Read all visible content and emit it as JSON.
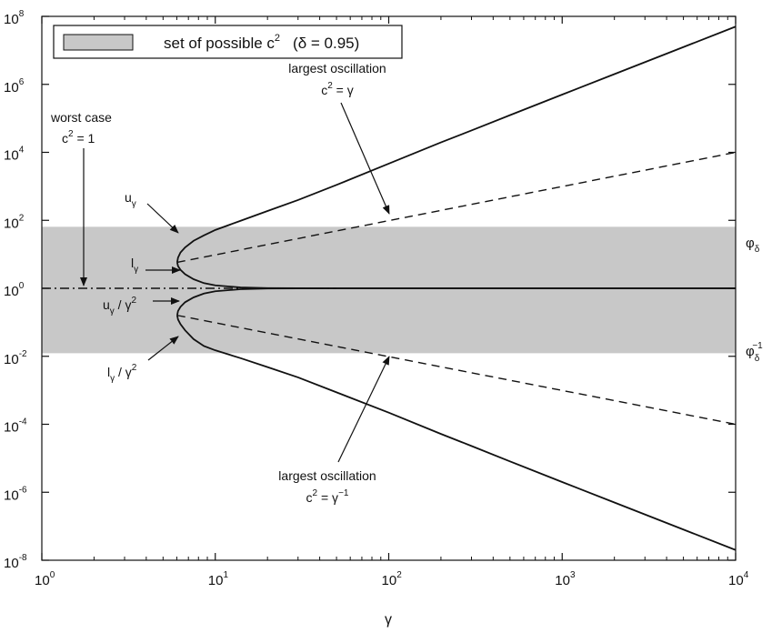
{
  "chart_data": {
    "type": "line",
    "xlabel": "γ",
    "ylabel": "",
    "x_scale": "log",
    "y_scale": "log",
    "xlim": [
      1,
      10000
    ],
    "ylim": [
      1e-08,
      100000000.0
    ],
    "x_ticks": [
      {
        "value": 1,
        "base": "10",
        "exp": "0"
      },
      {
        "value": 10,
        "base": "10",
        "exp": "1"
      },
      {
        "value": 100,
        "base": "10",
        "exp": "2"
      },
      {
        "value": 1000,
        "base": "10",
        "exp": "3"
      },
      {
        "value": 10000,
        "base": "10",
        "exp": "4"
      }
    ],
    "y_ticks": [
      {
        "value": 1e-08,
        "base": "10",
        "exp": "-8"
      },
      {
        "value": 1e-06,
        "base": "10",
        "exp": "-6"
      },
      {
        "value": 0.0001,
        "base": "10",
        "exp": "-4"
      },
      {
        "value": 0.01,
        "base": "10",
        "exp": "-2"
      },
      {
        "value": 1,
        "base": "10",
        "exp": "0"
      },
      {
        "value": 100,
        "base": "10",
        "exp": "2"
      },
      {
        "value": 10000,
        "base": "10",
        "exp": "4"
      },
      {
        "value": 1000000,
        "base": "10",
        "exp": "6"
      },
      {
        "value": 100000000,
        "base": "10",
        "exp": "8"
      }
    ],
    "legend": {
      "position": "top-left",
      "label": "set of possible c",
      "label_sup": "2",
      "label_suffix": "(δ = 0.95)"
    },
    "shaded_band": {
      "y_low": 0.0123,
      "y_high": 64.6,
      "color": "#c8c8c8"
    },
    "series": [
      {
        "key": "u_gamma",
        "style": "solid",
        "points": [
          [
            6.03,
            5.8
          ],
          [
            6.1,
            8.0
          ],
          [
            6.3,
            11.3
          ],
          [
            6.7,
            16.0
          ],
          [
            7.5,
            25
          ],
          [
            8.6,
            36
          ],
          [
            10,
            52
          ],
          [
            14,
            97
          ],
          [
            20,
            188
          ],
          [
            30,
            396
          ],
          [
            50,
            1100
          ],
          [
            100,
            4650
          ],
          [
            200,
            19600
          ],
          [
            300,
            44000
          ],
          [
            500,
            124000
          ],
          [
            1000,
            500000
          ],
          [
            2000,
            2000000
          ],
          [
            5000,
            12500000
          ],
          [
            10000,
            50000000
          ]
        ]
      },
      {
        "key": "l_gamma",
        "style": "solid",
        "points": [
          [
            6.03,
            5.8
          ],
          [
            6.1,
            4.5
          ],
          [
            6.3,
            3.5
          ],
          [
            6.7,
            2.6
          ],
          [
            7.5,
            1.85
          ],
          [
            8.6,
            1.42
          ],
          [
            10,
            1.22
          ],
          [
            14,
            1.06
          ],
          [
            20,
            1.015
          ],
          [
            30,
            1.003
          ],
          [
            50,
            1.0
          ],
          [
            100,
            1.0
          ],
          [
            10000,
            1.0
          ]
        ]
      },
      {
        "key": "u_gamma_over_gamma2",
        "style": "solid",
        "points": [
          [
            6.03,
            0.16
          ],
          [
            6.1,
            0.215
          ],
          [
            6.3,
            0.285
          ],
          [
            6.7,
            0.39
          ],
          [
            7.5,
            0.54
          ],
          [
            8.6,
            0.7
          ],
          [
            10,
            0.82
          ],
          [
            14,
            0.94
          ],
          [
            20,
            0.985
          ],
          [
            30,
            0.997
          ],
          [
            50,
            1.0
          ],
          [
            100,
            1.0
          ],
          [
            10000,
            1.0
          ]
        ]
      },
      {
        "key": "l_gamma_over_gamma2",
        "style": "solid",
        "points": [
          [
            6.03,
            0.16
          ],
          [
            6.1,
            0.121
          ],
          [
            6.3,
            0.088
          ],
          [
            6.7,
            0.058
          ],
          [
            7.5,
            0.032
          ],
          [
            8.6,
            0.02
          ],
          [
            10,
            0.015
          ],
          [
            14,
            0.0088
          ],
          [
            20,
            0.0048
          ],
          [
            30,
            0.0024
          ],
          [
            50,
            0.00087
          ],
          [
            100,
            0.00022
          ],
          [
            200,
            5.2e-05
          ],
          [
            300,
            2.3e-05
          ],
          [
            500,
            8.1e-06
          ],
          [
            1000,
            2e-06
          ],
          [
            2000,
            5e-07
          ],
          [
            5000,
            8e-08
          ],
          [
            10000,
            2e-08
          ]
        ]
      },
      {
        "key": "c2_equals_gamma",
        "style": "dashed",
        "points": [
          [
            6.03,
            5.8
          ],
          [
            10000,
            10000
          ]
        ]
      },
      {
        "key": "c2_equals_inv_gamma",
        "style": "dashed",
        "points": [
          [
            6.03,
            0.16
          ],
          [
            10000,
            0.0001
          ]
        ]
      },
      {
        "key": "c2_equals_1",
        "style": "dashdot",
        "points": [
          [
            1,
            1
          ],
          [
            50,
            1
          ]
        ]
      }
    ],
    "annotations": {
      "worst_case": {
        "line1": "worst case",
        "line2_base": "c",
        "line2_sup": "2",
        "line2_rest": " = 1"
      },
      "largest_osc_top": {
        "line1": "largest oscillation",
        "line2_base": "c",
        "line2_sup": "2",
        "line2_rest": " = γ"
      },
      "largest_osc_bottom": {
        "line1": "largest oscillation",
        "line2_base": "c",
        "line2_sup": "2",
        "line2_rest": " = γ",
        "line2_sup2": "−1"
      },
      "u_gamma": {
        "base": "u",
        "sub": "γ"
      },
      "l_gamma": {
        "base": "l",
        "sub": "γ"
      },
      "u_gamma_over_gamma2": {
        "base": "u",
        "sub": "γ",
        "rest": " / γ",
        "sup": "2"
      },
      "l_gamma_over_gamma2": {
        "base": "l",
        "sub": "γ",
        "rest": " / γ",
        "sup": "2"
      },
      "phi_delta": {
        "base": "φ",
        "sub": "δ"
      },
      "phi_delta_inv": {
        "base": "φ",
        "sub": "δ",
        "sup": "−1"
      }
    }
  }
}
